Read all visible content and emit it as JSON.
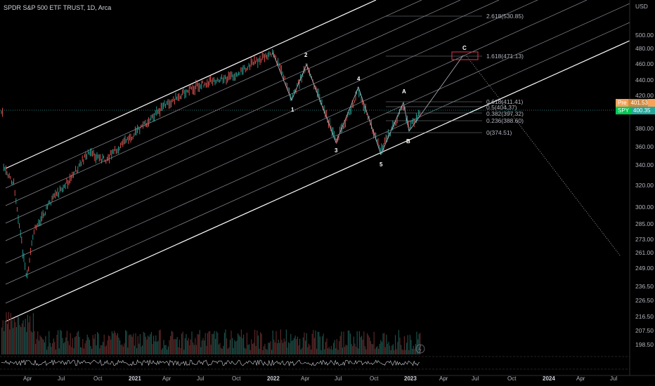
{
  "header": {
    "title": "SPDR S&P 500 ETF TRUST, 1D, Arca"
  },
  "price_axis": {
    "currency": "USD",
    "ticks": [
      "500.00",
      "480.00",
      "460.00",
      "440.00",
      "420.00",
      "380.00",
      "360.00",
      "340.00",
      "320.00",
      "300.00",
      "285.00",
      "273.00",
      "261.00",
      "249.00",
      "236.50",
      "226.50",
      "216.50",
      "207.50",
      "198.50"
    ]
  },
  "badges": {
    "prev_label": "Pre",
    "prev_value": "401.53",
    "symbol": "SPY",
    "last_value": "400.35"
  },
  "time_axis": {
    "labels": [
      "Apr",
      "Jul",
      "Oct",
      "2021",
      "Apr",
      "Jul",
      "Oct",
      "2022",
      "Apr",
      "Jul",
      "Oct",
      "2023",
      "Apr",
      "Jul",
      "Oct",
      "2024",
      "Apr",
      "Jul"
    ]
  },
  "fib_levels": [
    {
      "label": "2.618(530.85)"
    },
    {
      "label": "1.618(471.13)"
    },
    {
      "label": "0.618(411.41)"
    },
    {
      "label": "0.5(404.37)"
    },
    {
      "label": "0.382(397.32)"
    },
    {
      "label": "0.236(388.60)"
    },
    {
      "label": "0(374.51)"
    }
  ],
  "waves": [
    "1",
    "2",
    "3",
    "4",
    "5",
    "A",
    "B",
    "C"
  ],
  "colors": {
    "background": "#000000",
    "up": "#26a69a",
    "down": "#ef5350",
    "channel": "#ffffff",
    "prev_badge": "#f7a35c",
    "last_badge": "#26a69a",
    "projection_box": "#e3344e"
  }
}
